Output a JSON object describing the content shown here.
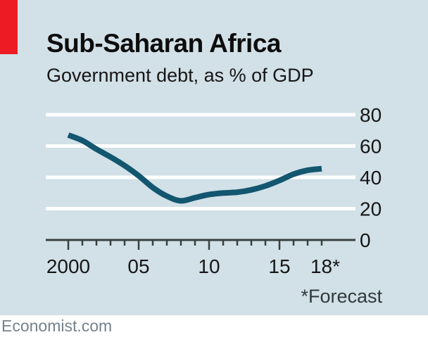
{
  "header": {
    "title": "Sub-Saharan Africa",
    "subtitle": "Government debt, as % of GDP"
  },
  "footnote": "*Forecast",
  "source": "Economist.com",
  "colors": {
    "panel_background": "#d2e0e7",
    "brand_red": "#ed1c24",
    "line": "#12566f",
    "gridline": "#ffffff",
    "axis": "#38413f",
    "label_text": "#161616",
    "title_text": "#0d0d0d",
    "source_text": "#75828a",
    "footer_background": "#ffffff"
  },
  "chart_data": {
    "type": "line",
    "title": "Sub-Saharan Africa",
    "subtitle": "Government debt, as % of GDP",
    "series": [
      {
        "name": "Government debt, as % of GDP",
        "x": [
          2000,
          2001,
          2002,
          2003,
          2004,
          2005,
          2006,
          2007,
          2008,
          2009,
          2010,
          2011,
          2012,
          2013,
          2014,
          2015,
          2016,
          2017,
          2018
        ],
        "values": [
          67,
          63.5,
          58,
          53,
          47.5,
          41,
          33.5,
          28,
          25,
          27,
          29,
          30,
          30.5,
          32,
          34.5,
          38,
          42,
          44.5,
          45.5
        ]
      }
    ],
    "xlabel": "",
    "ylabel": "% of GDP",
    "ylim": [
      0,
      80
    ],
    "yticks": [
      0,
      20,
      40,
      60,
      80
    ],
    "ytick_labels": [
      "0",
      "20",
      "40",
      "60",
      "80"
    ],
    "ytick_side": "right",
    "grid": "horizontal",
    "legend_position": "none",
    "xticks_minor_every_year": true,
    "xticks_major": [
      2000,
      2005,
      2010,
      2015
    ],
    "xtick_labels": [
      {
        "year": 2000,
        "label": "2000"
      },
      {
        "year": 2005,
        "label": "05"
      },
      {
        "year": 2010,
        "label": "10"
      },
      {
        "year": 2015,
        "label": "15"
      },
      {
        "year": 2018,
        "label": "18*"
      }
    ],
    "annotation": "*Forecast",
    "last_point_is_forecast": true
  }
}
